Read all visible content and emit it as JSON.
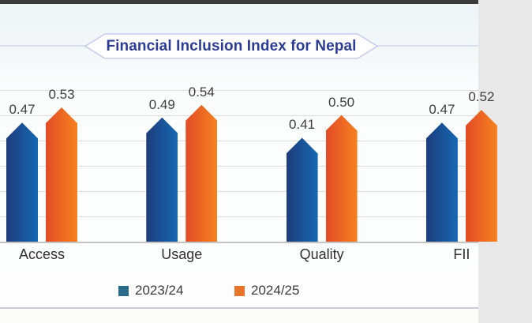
{
  "page": {
    "top_bar_color": "#3b3b3b"
  },
  "title_badge": {
    "text": "Financial Inclusion Index for Nepal",
    "text_color": "#2b3c94",
    "border_color": "#c8ccee",
    "fill_color": "#ffffff"
  },
  "chart_data": {
    "type": "bar",
    "title": "Financial Inclusion Index for Nepal",
    "categories": [
      "Access",
      "Usage",
      "Quality",
      "FII"
    ],
    "series": [
      {
        "name": "2023/24",
        "values": [
          0.47,
          0.49,
          0.41,
          0.47
        ],
        "labels": [
          "0.47",
          "0.49",
          "0.41",
          "0.47"
        ],
        "color_start": "#1d3c7c",
        "color_end": "#1668b2",
        "legend_color": "#2b6b8c"
      },
      {
        "name": "2024/25",
        "values": [
          0.53,
          0.54,
          0.5,
          0.52
        ],
        "labels": [
          "0.53",
          "0.54",
          "0.50",
          "0.52"
        ],
        "color_start": "#e34b26",
        "color_end": "#f5821f",
        "legend_color": "#e8732a"
      }
    ],
    "xlabel": "",
    "ylabel": "",
    "ylim": [
      0,
      0.6
    ],
    "gridline_step": 0.1,
    "grid": true,
    "legend_position": "bottom",
    "bar_shape": "pointed-pentagon",
    "value_label_color": "#3d3d3d",
    "category_label_color": "#2f2f2f",
    "gridline_color": "#dcdcdc"
  }
}
